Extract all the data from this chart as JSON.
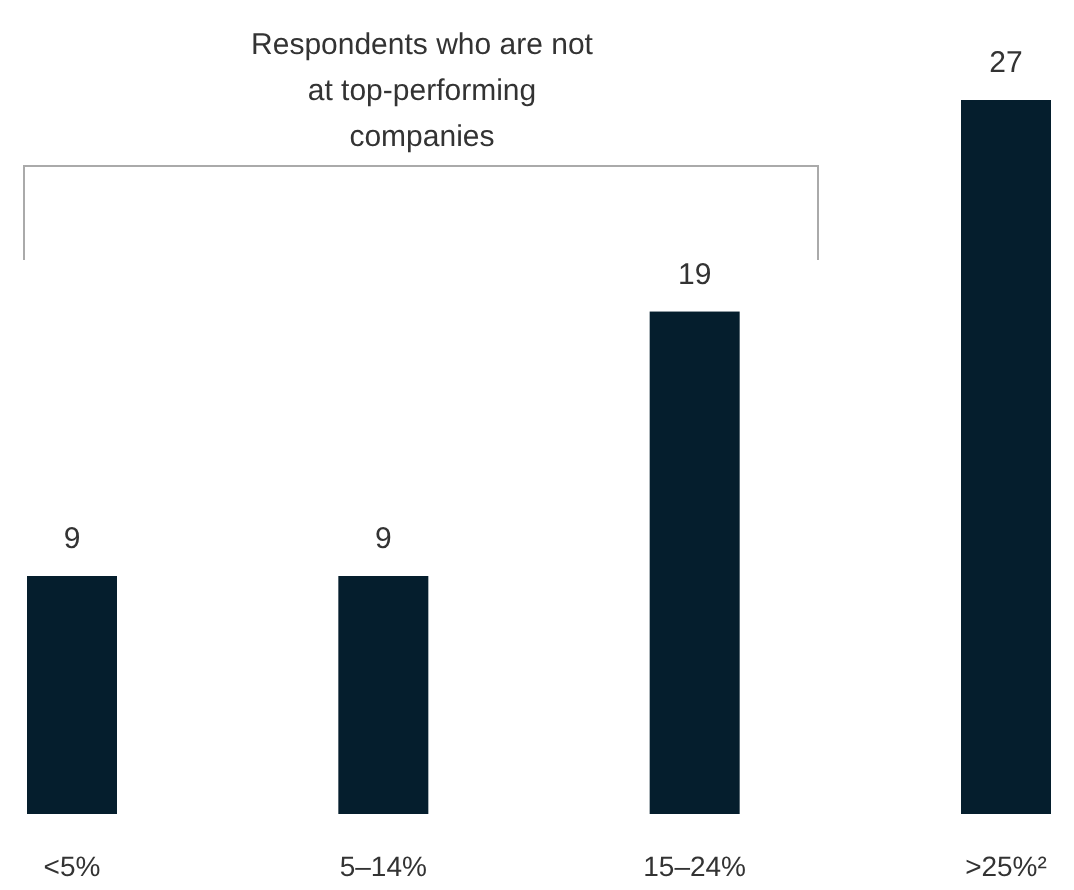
{
  "chart_data": {
    "type": "bar",
    "categories": [
      "<5%",
      "5–14%",
      "15–24%",
      ">25%²"
    ],
    "values": [
      9,
      9,
      19,
      27
    ],
    "color": "#051e2d",
    "data_labels": true,
    "annotations": [
      "Respondents who are not at top-performing companies"
    ]
  }
}
